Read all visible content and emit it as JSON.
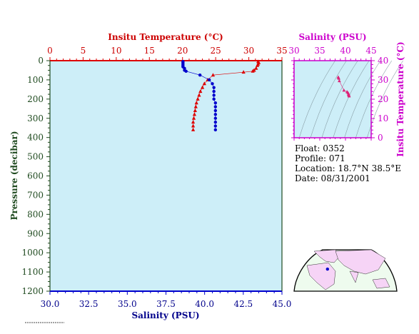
{
  "colors": {
    "plot_bg": "#cdeef8",
    "temperature": "#dd0000",
    "salinity": "#0000cc",
    "pressure_axis": "#1f4a1f",
    "ts_axis": "#cc00cc",
    "ts_points": "#dd2277",
    "map_land": "#f6d4f6",
    "map_ocean": "#eefbee"
  },
  "chart_data": [
    {
      "type": "line",
      "top_axis_label": "Insitu Temperature (°C)",
      "bottom_axis_label": "Salinity (PSU)",
      "ylabel": "Pressure (decibar)",
      "top_ticks": [
        "0",
        "5",
        "10",
        "15",
        "20",
        "25",
        "30",
        "35"
      ],
      "bottom_ticks": [
        "30.0",
        "32.5",
        "35.0",
        "37.5",
        "40.0",
        "42.5",
        "45.0"
      ],
      "y_ticks": [
        "0",
        "100",
        "200",
        "300",
        "400",
        "500",
        "600",
        "700",
        "800",
        "900",
        "1000",
        "1100",
        "1200"
      ],
      "xlim_temperature": [
        0,
        35
      ],
      "xlim_salinity": [
        30,
        45
      ],
      "ylim": [
        0,
        1200
      ],
      "y_inverted": true,
      "series": [
        {
          "key": "temperature",
          "axis": "top",
          "marker": "triangle",
          "points": [
            [
              31.4,
              5
            ],
            [
              31.5,
              10
            ],
            [
              31.4,
              18
            ],
            [
              31.3,
              25
            ],
            [
              31.1,
              40
            ],
            [
              30.8,
              50
            ],
            [
              30.6,
              55
            ],
            [
              29.2,
              60
            ],
            [
              24.6,
              75
            ],
            [
              23.8,
              100
            ],
            [
              23.3,
              120
            ],
            [
              23.0,
              140
            ],
            [
              22.7,
              160
            ],
            [
              22.5,
              180
            ],
            [
              22.3,
              200
            ],
            [
              22.1,
              220
            ],
            [
              22.0,
              240
            ],
            [
              21.9,
              260
            ],
            [
              21.8,
              280
            ],
            [
              21.7,
              300
            ],
            [
              21.6,
              320
            ],
            [
              21.6,
              340
            ],
            [
              21.6,
              360
            ]
          ]
        },
        {
          "key": "salinity",
          "axis": "bottom",
          "marker": "circle",
          "points": [
            [
              38.6,
              5
            ],
            [
              38.6,
              10
            ],
            [
              38.6,
              18
            ],
            [
              38.6,
              25
            ],
            [
              38.6,
              32
            ],
            [
              38.7,
              40
            ],
            [
              38.7,
              50
            ],
            [
              38.8,
              55
            ],
            [
              39.7,
              75
            ],
            [
              40.3,
              100
            ],
            [
              40.5,
              120
            ],
            [
              40.6,
              140
            ],
            [
              40.6,
              160
            ],
            [
              40.6,
              180
            ],
            [
              40.6,
              200
            ],
            [
              40.7,
              220
            ],
            [
              40.7,
              240
            ],
            [
              40.7,
              260
            ],
            [
              40.7,
              280
            ],
            [
              40.7,
              300
            ],
            [
              40.7,
              320
            ],
            [
              40.7,
              340
            ],
            [
              40.7,
              360
            ]
          ]
        }
      ]
    },
    {
      "type": "scatter",
      "xlabel": "Salinity (PSU)",
      "ylabel": "Insitu Temperature (°C)",
      "x_ticks": [
        "30",
        "35",
        "40",
        "45"
      ],
      "y_ticks": [
        "0",
        "10",
        "20",
        "30",
        "40"
      ],
      "xlim": [
        30,
        45
      ],
      "ylim": [
        0,
        40
      ],
      "points": [
        [
          38.6,
          31.4
        ],
        [
          38.6,
          31.3
        ],
        [
          38.7,
          30.8
        ],
        [
          38.8,
          29.5
        ],
        [
          39.7,
          24.6
        ],
        [
          40.3,
          23.8
        ],
        [
          40.5,
          23.3
        ],
        [
          40.6,
          22.7
        ],
        [
          40.6,
          22.3
        ],
        [
          40.7,
          21.9
        ],
        [
          40.7,
          21.6
        ]
      ]
    }
  ],
  "info": {
    "float": "Float:  0352",
    "profile": "Profile:  071",
    "location": "Location:  18.7°N  38.5°E",
    "date": "Date:  08/31/2001"
  },
  "map": {
    "float_lat": 18.7,
    "float_lon": 38.5
  }
}
